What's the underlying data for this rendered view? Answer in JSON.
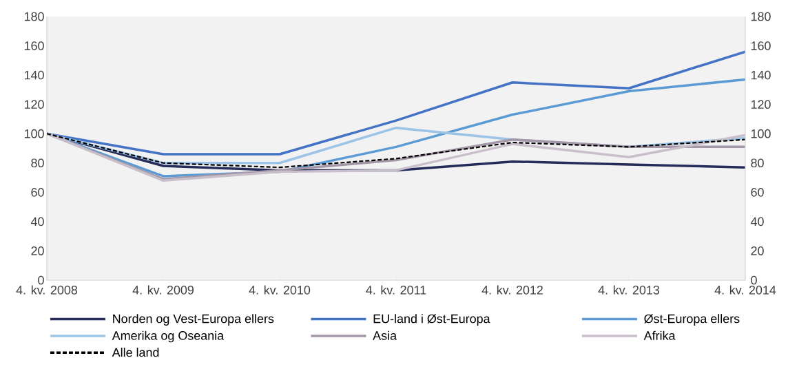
{
  "chart_data": {
    "type": "line",
    "categories": [
      "4. kv. 2008",
      "4. kv. 2009",
      "4. kv. 2010",
      "4. kv. 2011",
      "4. kv. 2012",
      "4. kv. 2013",
      "4. kv. 2014"
    ],
    "series": [
      {
        "name": "Norden og Vest-Europa ellers",
        "color": "#262c5a",
        "values": [
          100,
          78,
          75,
          75,
          81,
          79,
          77
        ]
      },
      {
        "name": "EU-land i Øst-Europa",
        "color": "#4472c4",
        "values": [
          100,
          86,
          86,
          109,
          135,
          131,
          156
        ]
      },
      {
        "name": "Øst-Europa ellers",
        "color": "#5b9bd5",
        "values": [
          100,
          71,
          74,
          91,
          113,
          129,
          137
        ]
      },
      {
        "name": "Amerika og Oseania",
        "color": "#9dc3e6",
        "values": [
          100,
          80,
          80,
          104,
          96,
          91,
          97
        ]
      },
      {
        "name": "Asia",
        "color": "#a497a8",
        "values": [
          100,
          69,
          75,
          82,
          96,
          91,
          91
        ]
      },
      {
        "name": "Afrika",
        "color": "#c9bfcb",
        "values": [
          100,
          68,
          74,
          75,
          93,
          84,
          99
        ]
      },
      {
        "name": "Alle land",
        "color": "#000000",
        "line_style": "dashed",
        "values": [
          100,
          80,
          77,
          83,
          94,
          91,
          96
        ]
      }
    ],
    "ylim": [
      0,
      180
    ],
    "yticks": [
      0,
      20,
      40,
      60,
      80,
      100,
      120,
      140,
      160,
      180
    ],
    "y2lim": [
      0,
      180
    ],
    "y2ticks": [
      0,
      20,
      40,
      60,
      80,
      100,
      120,
      140,
      160,
      180
    ],
    "grid": false,
    "legend": "bottom"
  }
}
